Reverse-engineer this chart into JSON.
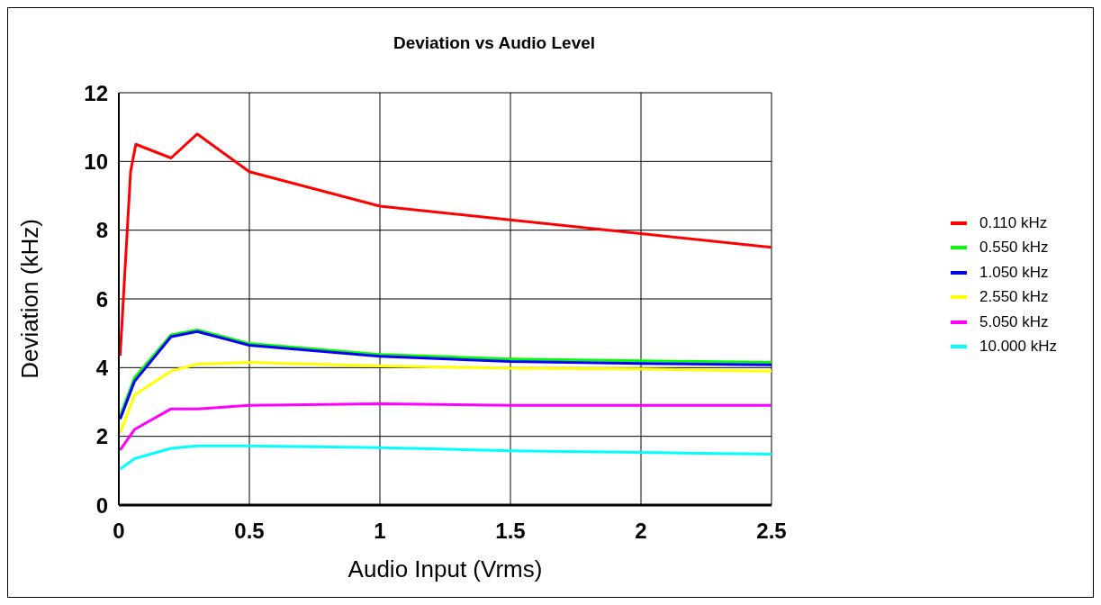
{
  "chart_data": {
    "type": "line",
    "title": "Deviation vs Audio Level",
    "xlabel": "Audio Input (Vrms)",
    "ylabel": "Deviation (kHz)",
    "x": [
      0.005,
      0.06,
      0.2,
      0.3,
      0.5,
      1,
      1.5,
      2,
      2.5
    ],
    "series": [
      {
        "name": "0.110 kHz",
        "color": "#ff0000",
        "x": [
          0.005,
          0.045,
          0.065,
          0.2,
          0.3,
          0.5,
          1,
          1.5,
          2,
          2.5
        ],
        "values": [
          4.35,
          9.7,
          10.5,
          10.1,
          10.8,
          9.7,
          8.7,
          8.3,
          7.9,
          7.5
        ]
      },
      {
        "name": "0.550 kHz",
        "color": "#00ff00",
        "values": [
          2.6,
          3.7,
          4.95,
          5.1,
          4.7,
          4.38,
          4.25,
          4.2,
          4.15
        ]
      },
      {
        "name": "1.050 kHz",
        "color": "#0000ff",
        "values": [
          2.5,
          3.6,
          4.9,
          5.05,
          4.65,
          4.33,
          4.18,
          4.12,
          4.08
        ]
      },
      {
        "name": "2.550 kHz",
        "color": "#ffff00",
        "values": [
          2.1,
          3.2,
          3.9,
          4.1,
          4.15,
          4.05,
          3.98,
          3.96,
          3.9
        ]
      },
      {
        "name": "5.050 kHz",
        "color": "#ff00ff",
        "values": [
          1.6,
          2.2,
          2.8,
          2.8,
          2.9,
          2.95,
          2.9,
          2.9,
          2.9
        ]
      },
      {
        "name": "10.000 kHz",
        "color": "#00ffff",
        "values": [
          1.05,
          1.35,
          1.65,
          1.72,
          1.72,
          1.67,
          1.58,
          1.53,
          1.48
        ]
      }
    ],
    "xlim": [
      0,
      2.5
    ],
    "xticks": [
      0,
      0.5,
      1,
      1.5,
      2,
      2.5
    ],
    "ylim": [
      0,
      12
    ],
    "yticks": [
      0,
      2,
      4,
      6,
      8,
      10,
      12
    ],
    "grid": true,
    "legend": "right",
    "marker": "none",
    "line_style": "solid"
  }
}
